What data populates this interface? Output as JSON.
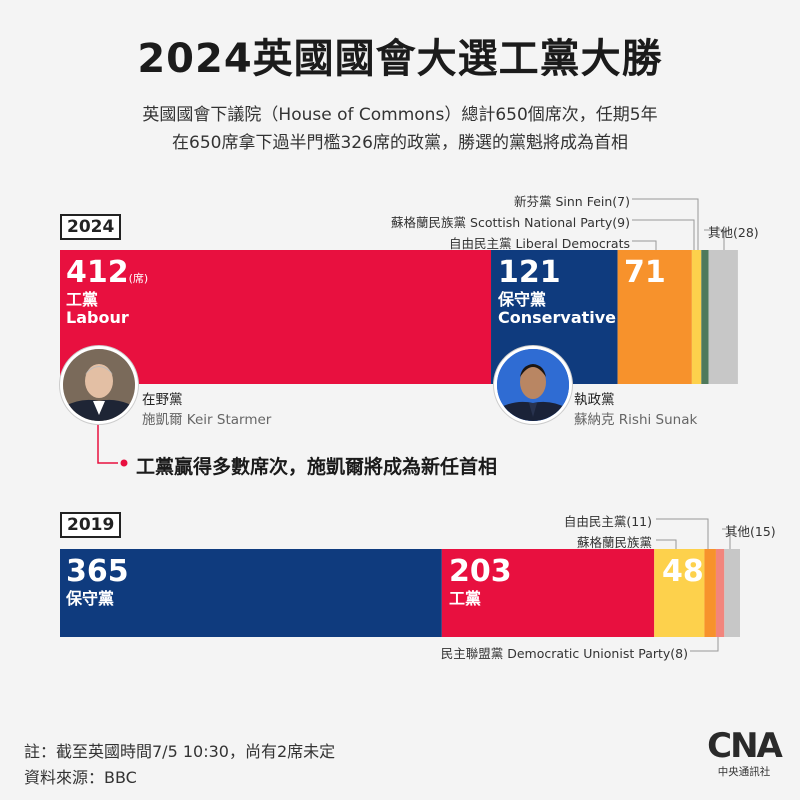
{
  "title": "2024英國國會大選工黨大勝",
  "subtitle_lines": [
    "英國國會下議院（House of Commons）總計650個席次，任期5年",
    "在650席拿下過半門檻326席的政黨，勝選的黨魁將成為首相"
  ],
  "chart_data": [
    {
      "type": "bar",
      "label": "2024",
      "total": 650,
      "series": [
        {
          "name": "工黨 Labour",
          "value": 412,
          "color": "#e8103f"
        },
        {
          "name": "保守黨 Conservative",
          "value": 121,
          "color": "#0f3b7e"
        },
        {
          "name": "自由民主黨 Liberal Democrats",
          "value": 71,
          "color": "#f7922c"
        },
        {
          "name": "蘇格蘭民族黨 Scottish National Party",
          "value": 9,
          "color": "#fdd14c"
        },
        {
          "name": "新芬黨 Sinn Fein",
          "value": 7,
          "color": "#4f7a5c"
        },
        {
          "name": "其他",
          "value": 28,
          "color": "#c7c7c7"
        }
      ]
    },
    {
      "type": "bar",
      "label": "2019",
      "total": 650,
      "series": [
        {
          "name": "保守黨",
          "value": 365,
          "color": "#0f3b7e"
        },
        {
          "name": "工黨",
          "value": 203,
          "color": "#e8103f"
        },
        {
          "name": "蘇格蘭民族黨",
          "value": 48,
          "color": "#fdd14c"
        },
        {
          "name": "自由民主黨",
          "value": 11,
          "color": "#f7922c"
        },
        {
          "name": "民主聯盟黨 Democratic Unionist Party",
          "value": 8,
          "color": "#f2857d"
        },
        {
          "name": "其他",
          "value": 15,
          "color": "#c7c7c7"
        }
      ]
    }
  ],
  "y2024": {
    "year": "2024",
    "labour": {
      "num": "412",
      "unit": "(席)",
      "zh": "工黨",
      "en": "Labour"
    },
    "con": {
      "num": "121",
      "zh": "保守黨",
      "en": "Conservative"
    },
    "ld": {
      "num": "71"
    },
    "notes": {
      "sf": "新芬黨 Sinn Fein(7)",
      "snp": "蘇格蘭民族黨 Scottish National Party(9)",
      "ld": "自由民主黨 Liberal Democrats",
      "other": "其他(28)"
    },
    "starmer": {
      "role": "在野黨",
      "name": "施凱爾 Keir Starmer"
    },
    "sunak": {
      "role": "執政黨",
      "name": "蘇納克 Rishi Sunak"
    },
    "headline": "工黨贏得多數席次，施凱爾將成為新任首相"
  },
  "y2019": {
    "year": "2019",
    "con": {
      "num": "365",
      "zh": "保守黨"
    },
    "lab": {
      "num": "203",
      "zh": "工黨"
    },
    "snp": {
      "num": "48"
    },
    "notes": {
      "ld": "自由民主黨(11)",
      "snp": "蘇格蘭民族黨",
      "other": "其他(15)",
      "dup": "民主聯盟黨 Democratic Unionist Party(8)"
    }
  },
  "footer": {
    "note": "註：截至英國時間7/5 10:30，尚有2席未定",
    "source": "資料來源：BBC"
  },
  "logo": {
    "text": "CNA",
    "caption": "中央通訊社"
  }
}
